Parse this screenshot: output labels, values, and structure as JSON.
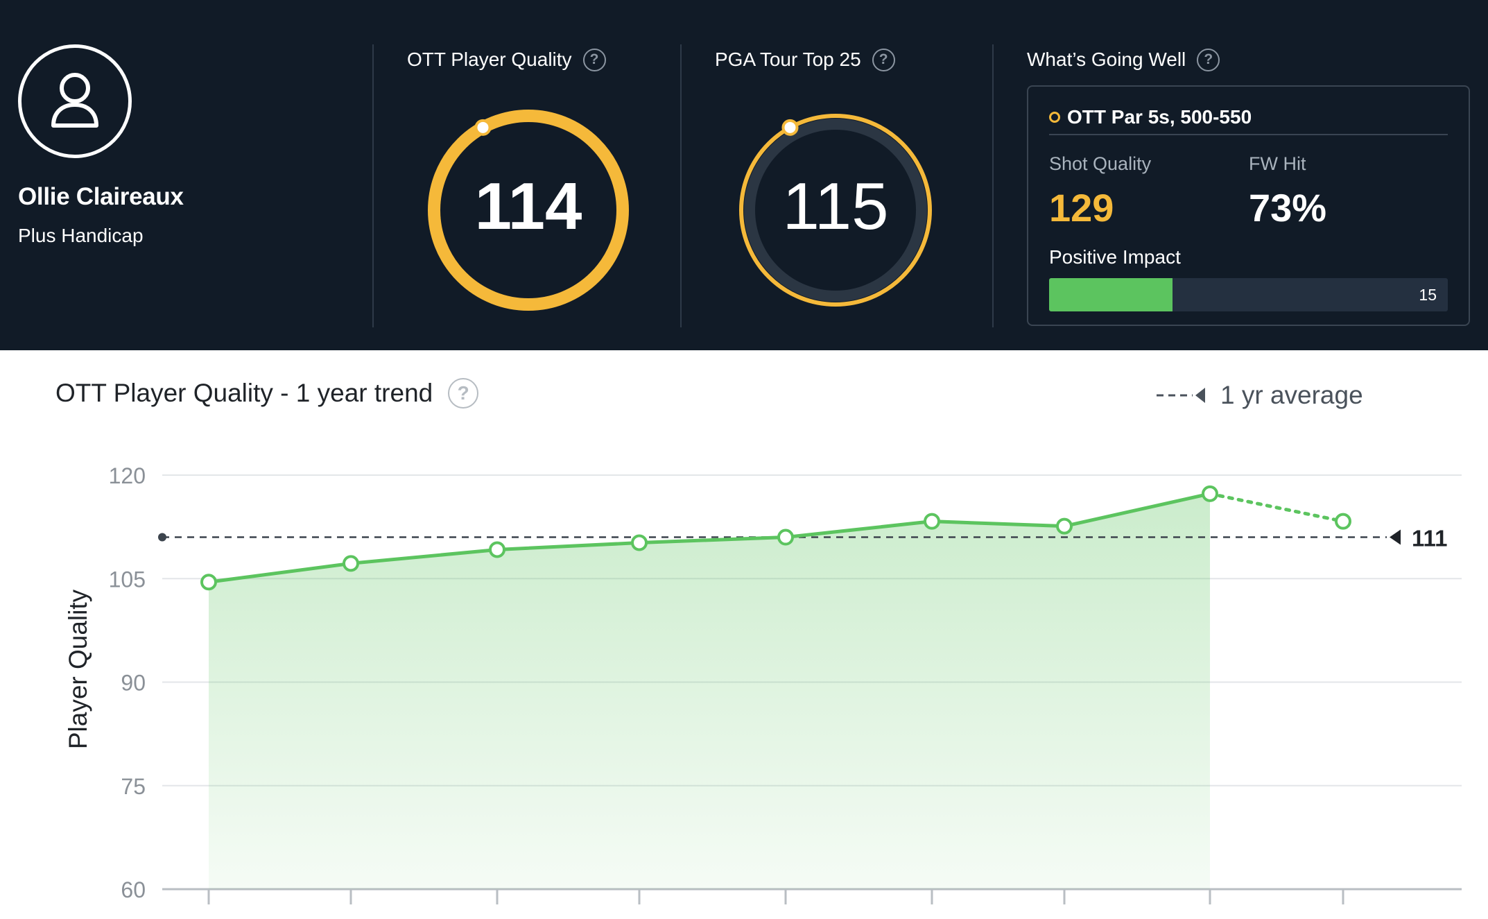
{
  "player": {
    "name": "Ollie Claireaux",
    "handicap": "Plus Handicap"
  },
  "metrics": [
    {
      "title": "OTT Player Quality",
      "value": "114",
      "progress": 0.92
    },
    {
      "title": "PGA Tour Top 25",
      "value": "115",
      "progress": 0.92
    }
  ],
  "going_well": {
    "title": "What’s Going Well",
    "item": "OTT Par 5s, 500-550",
    "shot_quality_label": "Shot Quality",
    "shot_quality_value": "129",
    "fw_hit_label": "FW Hit",
    "fw_hit_value": "73%",
    "impact_label": "Positive Impact",
    "impact_value": "15",
    "impact_fraction": 0.31
  },
  "colors": {
    "header_bg": "#111b27",
    "accent_gold": "#f5b93a",
    "accent_green": "#5cc45f"
  },
  "chart_data": {
    "type": "area",
    "title": "OTT Player Quality - 1 year trend",
    "ylabel": "Player Quality",
    "xlabel": "",
    "ylim": [
      60,
      120
    ],
    "yticks": [
      "120",
      "105",
      "90",
      "75",
      "60"
    ],
    "average_label": "1 yr average",
    "average_value": 111,
    "average_text": "111",
    "series": [
      {
        "values": [
          104.5,
          107.2,
          109.2,
          110.2,
          111.0,
          113.3,
          112.6,
          117.3
        ]
      }
    ],
    "projection": {
      "values": [
        117.3,
        113.3
      ]
    },
    "grid": true,
    "legend": "top-right"
  }
}
